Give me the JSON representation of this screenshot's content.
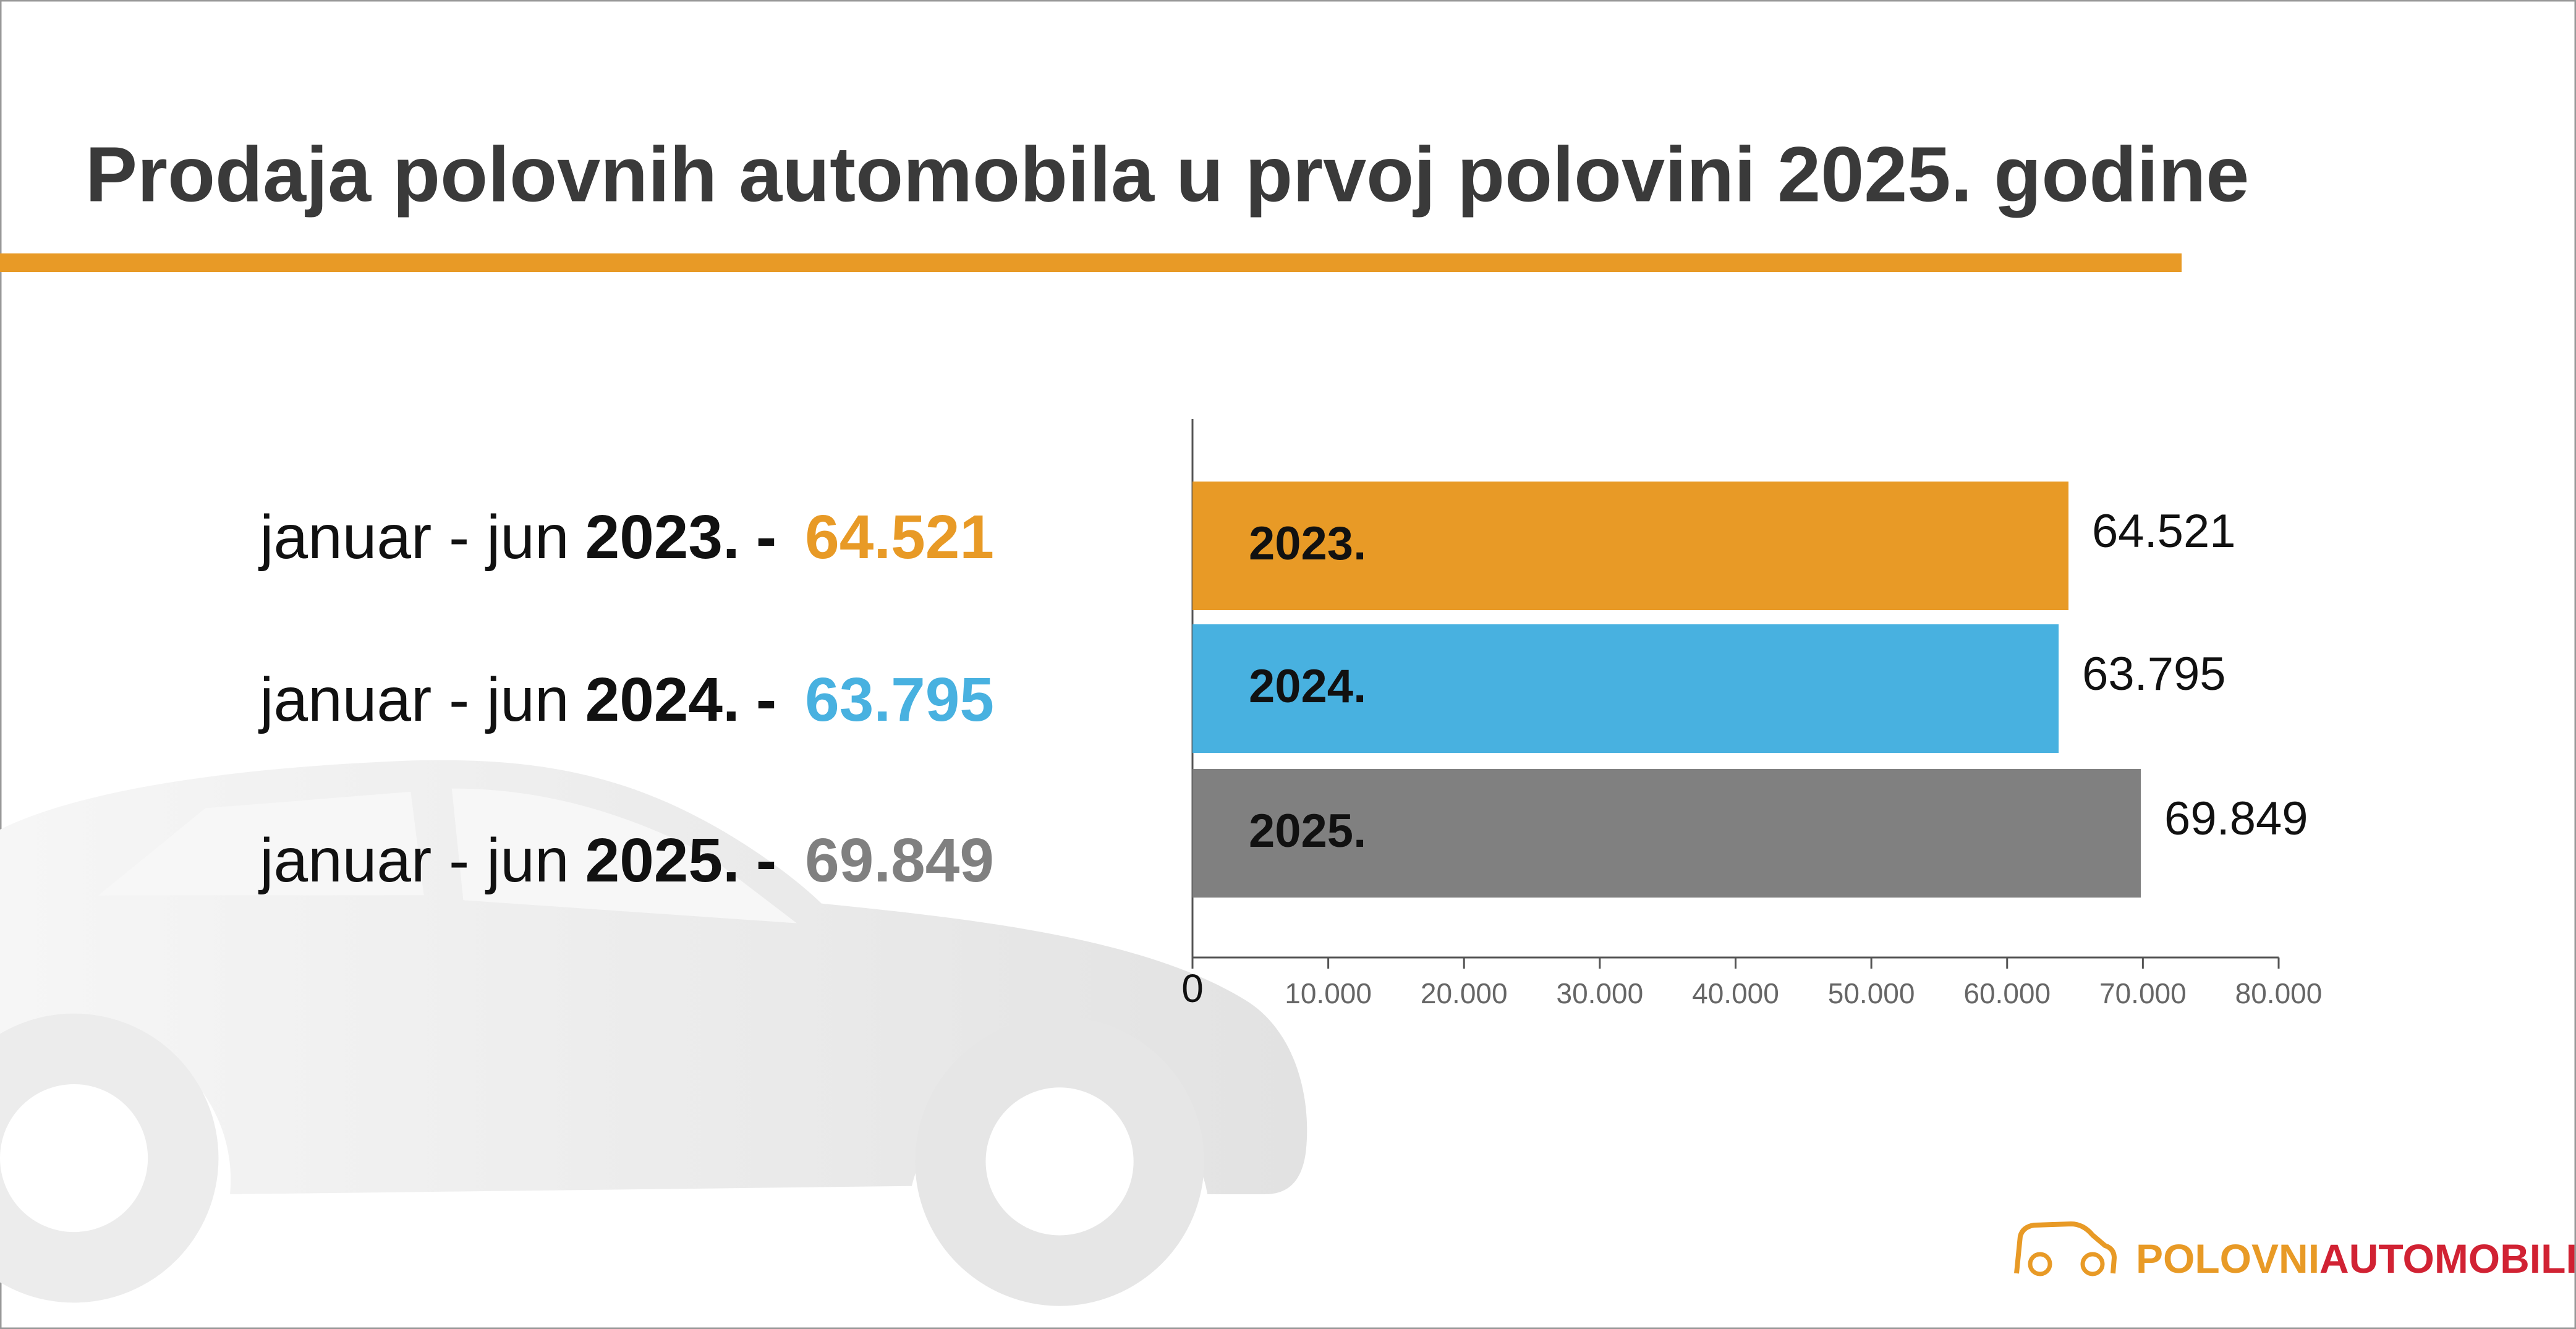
{
  "title": "Prodaja polovnih automobila u prvoj polovini 2025. godine",
  "summary": {
    "prefix": "januar - jun",
    "separator": "-"
  },
  "logo": {
    "part1": "POLOVNI",
    "part2": "AUTOMOBILI"
  },
  "chart_data": {
    "type": "bar",
    "orientation": "horizontal",
    "categories": [
      "2023.",
      "2024.",
      "2025."
    ],
    "values": [
      64521,
      63795,
      69849
    ],
    "value_labels": [
      "64.521",
      "63.795",
      "69.849"
    ],
    "colors": [
      "#e89a26",
      "#48b1e0",
      "#808080"
    ],
    "xlim": [
      0,
      80000
    ],
    "xticks": [
      0,
      {
        "value": 10000,
        "label": "10.000"
      },
      {
        "value": 20000,
        "label": "20.000"
      },
      {
        "value": 30000,
        "label": "30.000"
      },
      {
        "value": 40000,
        "label": "40.000"
      },
      {
        "value": 50000,
        "label": "50.000"
      },
      {
        "value": 60000,
        "label": "60.000"
      },
      {
        "value": 70000,
        "label": "70.000"
      },
      {
        "value": 80000,
        "label": "80.000"
      }
    ],
    "grid": false
  }
}
